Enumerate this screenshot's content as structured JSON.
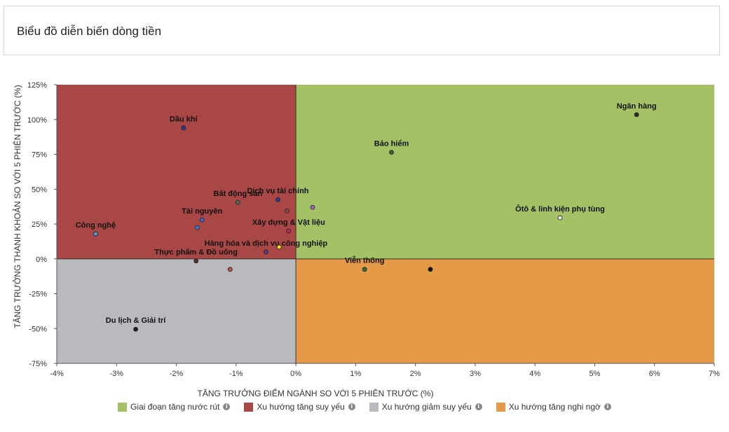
{
  "header": {
    "title": "Biểu đồ diễn biến dòng tiền"
  },
  "legend": [
    {
      "label": "Giai đoạn tăng nước rút",
      "color": "#a4c165",
      "icon": "info-icon"
    },
    {
      "label": "Xu hướng tăng suy yếu",
      "color": "#a84746",
      "icon": "info-icon"
    },
    {
      "label": "Xu hướng giảm suy yếu",
      "color": "#b9babe",
      "icon": "info-icon"
    },
    {
      "label": "Xu hướng tăng nghi ngờ",
      "color": "#e59a48",
      "icon": "info-icon"
    }
  ],
  "chart_data": {
    "type": "scatter",
    "xlabel": "TĂNG TRƯỞNG ĐIỂM NGÀNH SO VỚI 5 PHIÊN TRƯỚC (%)",
    "ylabel": "TĂNG TRƯỞNG THANH KHOẢN SO VỚI 5 PHIÊN TRƯỚC (%)",
    "xlim": [
      -4,
      7
    ],
    "ylim": [
      -75,
      125
    ],
    "x_ticks": [
      -4,
      -3,
      -2,
      -1,
      0,
      1,
      2,
      3,
      4,
      5,
      6,
      7
    ],
    "x_tick_labels": [
      "-4%",
      "-3%",
      "-2%",
      "-1%",
      "0%",
      "1%",
      "2%",
      "3%",
      "4%",
      "5%",
      "6%",
      "7%"
    ],
    "y_ticks": [
      125,
      100,
      75,
      50,
      25,
      0,
      -25,
      -50,
      -75
    ],
    "y_tick_labels": [
      "125%",
      "100%",
      "75%",
      "50%",
      "25%",
      "0%",
      "-25%",
      "-50%",
      "-75%"
    ],
    "quadrants": {
      "top_right": "#a4c165",
      "top_left": "#a84746",
      "bottom_left": "#b9babe",
      "bottom_right": "#e59a48"
    },
    "points": [
      {
        "label": "Ngân hàng",
        "x": 5.7,
        "y": 103.5,
        "color": "#2a2a2a"
      },
      {
        "label": "Bảo hiểm",
        "x": 1.6,
        "y": 76.5,
        "color": "#4a5a3a"
      },
      {
        "label": "Dầu khí",
        "x": -1.88,
        "y": 94,
        "color": "#2b3c8c"
      },
      {
        "label": "Bất động sản",
        "x": -0.97,
        "y": 40.5,
        "color": "#4f6a4f"
      },
      {
        "label": "Dịch vụ tài chính",
        "x": -0.3,
        "y": 42.5,
        "color": "#2b3c9c"
      },
      {
        "label": "",
        "x": -0.15,
        "y": 34.5,
        "color": "#8a4a45"
      },
      {
        "label": "",
        "x": 0.28,
        "y": 37,
        "color": "#a860c8"
      },
      {
        "label": "Tài nguyên",
        "x": -1.57,
        "y": 28,
        "color": "#3a6ad0"
      },
      {
        "label": "",
        "x": -1.65,
        "y": 22.5,
        "color": "#3a7ad0"
      },
      {
        "label": "Xây dựng & Vật liệu",
        "x": -0.12,
        "y": 20,
        "color": "#c02a60"
      },
      {
        "label": "Công nghệ",
        "x": -3.35,
        "y": 18,
        "color": "#4a9ad8"
      },
      {
        "label": "Hàng hóa và dịch vụ công nghiệp",
        "x": -0.5,
        "y": 5,
        "color": "#5a3a8a"
      },
      {
        "label": "",
        "x": -0.28,
        "y": 8.5,
        "color": "#f5e020"
      },
      {
        "label": "Thực phẩm & Đồ uống",
        "x": -1.67,
        "y": -1.5,
        "color": "#5a2a2a"
      },
      {
        "label": "",
        "x": -1.1,
        "y": -7.5,
        "color": "#c05050"
      },
      {
        "label": "Ôtô & linh kiện phụ tùng",
        "x": 4.42,
        "y": 29.5,
        "color": "#f0f0e0"
      },
      {
        "label": "Viễn thông",
        "x": 1.15,
        "y": -7.5,
        "color": "#3a6a3a"
      },
      {
        "label": "",
        "x": 2.25,
        "y": -7.5,
        "color": "#111111"
      },
      {
        "label": "Du lịch & Giải trí",
        "x": -2.68,
        "y": -50.5,
        "color": "#1a1a1a"
      }
    ]
  }
}
